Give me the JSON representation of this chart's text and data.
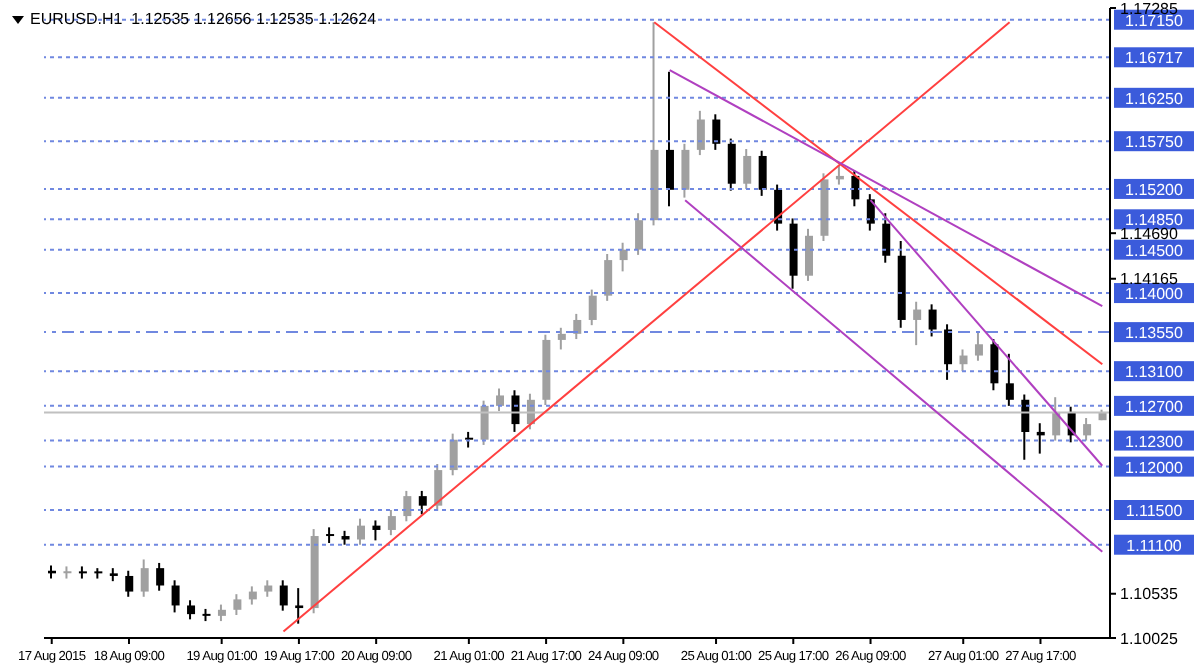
{
  "chart_data": {
    "type": "candlestick",
    "title": "EURUSD.H1  1.12535 1.12656 1.12535 1.12624",
    "categories": [
      "17 Aug 2015",
      null,
      null,
      null,
      null,
      "18 Aug 09:00",
      null,
      null,
      null,
      null,
      null,
      "19 Aug 01:00",
      null,
      null,
      null,
      null,
      "19 Aug 17:00",
      null,
      null,
      null,
      null,
      "20 Aug 09:00",
      null,
      null,
      null,
      null,
      null,
      "21 Aug 01:00",
      null,
      null,
      null,
      null,
      "21 Aug 17:00",
      null,
      null,
      null,
      null,
      "24 Aug 09:00",
      null,
      null,
      null,
      null,
      null,
      "25 Aug 01:00",
      null,
      null,
      null,
      null,
      "25 Aug 17:00",
      null,
      null,
      null,
      null,
      "26 Aug 09:00",
      null,
      null,
      null,
      null,
      null,
      "27 Aug 01:00",
      null,
      null,
      null,
      null,
      "27 Aug 17:00",
      null,
      null,
      null,
      null
    ],
    "ohlc": [
      [
        1.108,
        1.1086,
        1.1071,
        1.1077
      ],
      [
        1.1077,
        1.1085,
        1.1071,
        1.1079
      ],
      [
        1.1079,
        1.1085,
        1.1071,
        1.1077
      ],
      [
        1.1077,
        1.1083,
        1.1071,
        1.1077
      ],
      [
        1.1077,
        1.1083,
        1.1068,
        1.1074
      ],
      [
        1.1074,
        1.108,
        1.105,
        1.1056
      ],
      [
        1.1056,
        1.1093,
        1.105,
        1.1083
      ],
      [
        1.1083,
        1.1089,
        1.1057,
        1.1063
      ],
      [
        1.1063,
        1.1069,
        1.1032,
        1.104
      ],
      [
        1.104,
        1.1046,
        1.1024,
        1.103
      ],
      [
        1.103,
        1.1036,
        1.1022,
        1.1028
      ],
      [
        1.1028,
        1.1041,
        1.1022,
        1.1035
      ],
      [
        1.1035,
        1.1053,
        1.1029,
        1.1047
      ],
      [
        1.1047,
        1.1062,
        1.1041,
        1.1056
      ],
      [
        1.1056,
        1.1069,
        1.105,
        1.1063
      ],
      [
        1.1063,
        1.1069,
        1.1034,
        1.104
      ],
      [
        1.104,
        1.106,
        1.1019,
        1.1037
      ],
      [
        1.1037,
        1.1128,
        1.1031,
        1.112
      ],
      [
        1.112,
        1.113,
        1.1112,
        1.112
      ],
      [
        1.112,
        1.1126,
        1.111,
        1.1116
      ],
      [
        1.1116,
        1.114,
        1.111,
        1.1132
      ],
      [
        1.1132,
        1.1138,
        1.1115,
        1.1127
      ],
      [
        1.1127,
        1.115,
        1.1121,
        1.1143
      ],
      [
        1.1143,
        1.1172,
        1.1137,
        1.1166
      ],
      [
        1.1166,
        1.1172,
        1.1145,
        1.1155
      ],
      [
        1.1155,
        1.1203,
        1.1149,
        1.1196
      ],
      [
        1.1196,
        1.1238,
        1.119,
        1.1231
      ],
      [
        1.1231,
        1.124,
        1.1222,
        1.1231
      ],
      [
        1.1231,
        1.1276,
        1.1225,
        1.127
      ],
      [
        1.127,
        1.129,
        1.1264,
        1.1282
      ],
      [
        1.1282,
        1.1288,
        1.124,
        1.1249
      ],
      [
        1.1249,
        1.1284,
        1.1243,
        1.1277
      ],
      [
        1.1277,
        1.1352,
        1.1271,
        1.1346
      ],
      [
        1.1346,
        1.136,
        1.1335,
        1.1353
      ],
      [
        1.1353,
        1.1376,
        1.1347,
        1.1369
      ],
      [
        1.1369,
        1.1404,
        1.1363,
        1.1397
      ],
      [
        1.1397,
        1.1445,
        1.1391,
        1.1438
      ],
      [
        1.1438,
        1.1458,
        1.1425,
        1.145
      ],
      [
        1.145,
        1.1492,
        1.1444,
        1.1484
      ],
      [
        1.1484,
        1.1712,
        1.1478,
        1.1565
      ],
      [
        1.1565,
        1.1655,
        1.15,
        1.1519
      ],
      [
        1.1519,
        1.1572,
        1.151,
        1.1565
      ],
      [
        1.1565,
        1.161,
        1.1559,
        1.16
      ],
      [
        1.16,
        1.1606,
        1.1565,
        1.1572
      ],
      [
        1.1572,
        1.1578,
        1.1518,
        1.1526
      ],
      [
        1.1526,
        1.1566,
        1.152,
        1.1558
      ],
      [
        1.1558,
        1.1564,
        1.1512,
        1.1519
      ],
      [
        1.1519,
        1.1525,
        1.1472,
        1.148
      ],
      [
        1.148,
        1.1486,
        1.1405,
        1.142
      ],
      [
        1.142,
        1.1474,
        1.1414,
        1.1466
      ],
      [
        1.1466,
        1.1538,
        1.146,
        1.1531
      ],
      [
        1.1531,
        1.1547,
        1.1525,
        1.1535
      ],
      [
        1.1535,
        1.1541,
        1.15,
        1.1508
      ],
      [
        1.1508,
        1.1514,
        1.1472,
        1.148
      ],
      [
        1.148,
        1.1492,
        1.1435,
        1.1443
      ],
      [
        1.1443,
        1.146,
        1.136,
        1.1369
      ],
      [
        1.1369,
        1.139,
        1.134,
        1.1381
      ],
      [
        1.1381,
        1.1387,
        1.135,
        1.1358
      ],
      [
        1.1358,
        1.1364,
        1.13,
        1.1318
      ],
      [
        1.1318,
        1.1335,
        1.131,
        1.1328
      ],
      [
        1.1328,
        1.1355,
        1.1322,
        1.1341
      ],
      [
        1.1341,
        1.1347,
        1.1288,
        1.1296
      ],
      [
        1.1296,
        1.133,
        1.127,
        1.1277
      ],
      [
        1.1277,
        1.1283,
        1.1208,
        1.124
      ],
      [
        1.124,
        1.125,
        1.1215,
        1.1236
      ],
      [
        1.1236,
        1.128,
        1.123,
        1.1263
      ],
      [
        1.1263,
        1.1269,
        1.1228,
        1.1236
      ],
      [
        1.1236,
        1.1256,
        1.123,
        1.1249
      ],
      [
        1.12535,
        1.12656,
        1.12535,
        1.12624
      ]
    ],
    "colors": [
      "#000000",
      "#a0a0a0",
      "#000000",
      "#000000",
      "#000000",
      "#000000",
      "#a0a0a0",
      "#000000",
      "#000000",
      "#000000",
      "#000000",
      "#a0a0a0",
      "#a0a0a0",
      "#a0a0a0",
      "#a0a0a0",
      "#000000",
      "#000000",
      "#a0a0a0",
      "#000000",
      "#000000",
      "#a0a0a0",
      "#000000",
      "#a0a0a0",
      "#a0a0a0",
      "#000000",
      "#a0a0a0",
      "#a0a0a0",
      "#000000",
      "#a0a0a0",
      "#a0a0a0",
      "#000000",
      "#a0a0a0",
      "#a0a0a0",
      "#a0a0a0",
      "#a0a0a0",
      "#a0a0a0",
      "#a0a0a0",
      "#a0a0a0",
      "#a0a0a0",
      "#a0a0a0",
      "#000000",
      "#a0a0a0",
      "#a0a0a0",
      "#000000",
      "#000000",
      "#a0a0a0",
      "#000000",
      "#000000",
      "#000000",
      "#a0a0a0",
      "#a0a0a0",
      "#a0a0a0",
      "#000000",
      "#000000",
      "#000000",
      "#000000",
      "#a0a0a0",
      "#000000",
      "#000000",
      "#a0a0a0",
      "#a0a0a0",
      "#000000",
      "#000000",
      "#000000",
      "#000000",
      "#a0a0a0",
      "#000000",
      "#a0a0a0",
      "#a0a0a0"
    ],
    "series": [
      {
        "type": "line",
        "color": "#ff4040",
        "values": [
          null,
          null,
          null,
          null,
          null,
          null,
          null,
          null,
          null,
          null,
          null,
          null,
          null,
          null,
          null,
          1.101,
          null,
          null,
          null,
          null,
          null,
          null,
          null,
          null,
          null,
          null,
          null,
          null,
          null,
          null,
          null,
          null,
          null,
          null,
          null,
          null,
          null,
          null,
          null,
          null,
          null,
          null,
          null,
          null,
          null,
          null,
          null,
          null,
          null,
          null,
          null,
          null,
          null,
          null,
          null,
          null,
          null,
          null,
          null,
          null,
          null,
          null,
          1.1712,
          null,
          null,
          null,
          null,
          null,
          null
        ]
      },
      {
        "type": "line",
        "color": "#ff4040",
        "values": [
          null,
          null,
          null,
          null,
          null,
          null,
          null,
          null,
          null,
          null,
          null,
          null,
          null,
          null,
          null,
          null,
          null,
          null,
          null,
          null,
          null,
          null,
          null,
          null,
          null,
          null,
          null,
          null,
          null,
          null,
          null,
          null,
          null,
          null,
          null,
          null,
          null,
          null,
          null,
          1.1712,
          null,
          null,
          null,
          null,
          null,
          null,
          null,
          null,
          null,
          null,
          null,
          null,
          null,
          null,
          null,
          null,
          null,
          null,
          null,
          null,
          null,
          null,
          null,
          null,
          null,
          null,
          null,
          null,
          1.1318
        ]
      },
      {
        "type": "line",
        "color": "#b040c0",
        "values": [
          null,
          null,
          null,
          null,
          null,
          null,
          null,
          null,
          null,
          null,
          null,
          null,
          null,
          null,
          null,
          null,
          null,
          null,
          null,
          null,
          null,
          null,
          null,
          null,
          null,
          null,
          null,
          null,
          null,
          null,
          null,
          null,
          null,
          null,
          null,
          null,
          null,
          null,
          null,
          null,
          1.1657,
          null,
          null,
          null,
          null,
          null,
          null,
          null,
          null,
          null,
          null,
          null,
          null,
          null,
          null,
          null,
          null,
          null,
          null,
          null,
          null,
          null,
          null,
          null,
          null,
          null,
          null,
          null,
          1.1385
        ]
      },
      {
        "type": "line",
        "color": "#b040c0",
        "values": [
          null,
          null,
          null,
          null,
          null,
          null,
          null,
          null,
          null,
          null,
          null,
          null,
          null,
          null,
          null,
          null,
          null,
          null,
          null,
          null,
          null,
          null,
          null,
          null,
          null,
          null,
          null,
          null,
          null,
          null,
          null,
          null,
          null,
          null,
          null,
          null,
          null,
          null,
          null,
          null,
          null,
          1.1507,
          null,
          null,
          null,
          null,
          null,
          null,
          null,
          null,
          null,
          null,
          null,
          null,
          null,
          null,
          null,
          null,
          null,
          null,
          null,
          null,
          null,
          null,
          null,
          null,
          null,
          null,
          1.1102
        ]
      },
      {
        "type": "line",
        "color": "#b040c0",
        "values": [
          null,
          null,
          null,
          null,
          null,
          null,
          null,
          null,
          null,
          null,
          null,
          null,
          null,
          null,
          null,
          null,
          null,
          null,
          null,
          null,
          null,
          null,
          null,
          null,
          null,
          null,
          null,
          null,
          null,
          null,
          null,
          null,
          null,
          null,
          null,
          null,
          null,
          null,
          null,
          null,
          null,
          null,
          null,
          null,
          null,
          null,
          null,
          null,
          null,
          null,
          null,
          null,
          null,
          1.1507,
          null,
          null,
          null,
          null,
          null,
          null,
          null,
          null,
          null,
          null,
          null,
          null,
          null,
          null,
          1.1201
        ]
      }
    ],
    "ylim": [
      1.10025,
      1.17285
    ],
    "yticks": [
      1.10025,
      1.10535,
      1.14165,
      {
        "value": 1.1469,
        "label": "1.14690"
      },
      1.17285
    ],
    "ref_lines": [
      {
        "axis": "y",
        "value": 1.1715,
        "label": "1.17150",
        "color": "#7088e0",
        "line_style": "dotted"
      },
      {
        "axis": "y",
        "value": 1.16717,
        "label": "1.16717",
        "color": "#7088e0",
        "line_style": "dotted"
      },
      {
        "axis": "y",
        "value": 1.1625,
        "label": "1.16250",
        "color": "#7088e0",
        "line_style": "dotted"
      },
      {
        "axis": "y",
        "value": 1.1575,
        "label": "1.15750",
        "color": "#7088e0",
        "line_style": "dotted"
      },
      {
        "axis": "y",
        "value": 1.152,
        "label": "1.15200",
        "color": "#7088e0",
        "line_style": "dotted"
      },
      {
        "axis": "y",
        "value": 1.1485,
        "label": "1.14850",
        "color": "#7088e0",
        "line_style": "dotted"
      },
      {
        "axis": "y",
        "value": 1.145,
        "label": "1.14500",
        "color": "#7088e0",
        "line_style": "dotted"
      },
      {
        "axis": "y",
        "value": 1.14,
        "label": "1.14000",
        "color": "#7088e0",
        "line_style": "dotted"
      },
      {
        "axis": "y",
        "value": 1.1355,
        "label": "1.13550",
        "color": "#7088e0",
        "line_style": "dashed"
      },
      {
        "axis": "y",
        "value": 1.131,
        "label": "1.13100",
        "color": "#7088e0",
        "line_style": "dotted"
      },
      {
        "axis": "y",
        "value": 1.127,
        "label": "1.12700",
        "color": "#7088e0",
        "line_style": "dotted"
      },
      {
        "axis": "y",
        "value": 1.12624,
        "color": "#c0c0c0",
        "line_style": "solid"
      },
      {
        "axis": "y",
        "value": 1.123,
        "label": "1.12300",
        "color": "#7088e0",
        "line_style": "dotted"
      },
      {
        "axis": "y",
        "value": 1.12,
        "label": "1.12000",
        "color": "#7088e0",
        "line_style": "dotted"
      },
      {
        "axis": "y",
        "value": 1.115,
        "label": "1.11500",
        "color": "#7088e0",
        "line_style": "dotted"
      },
      {
        "axis": "y",
        "value": 1.111,
        "label": "1.11100",
        "color": "#7088e0",
        "line_style": "dotted"
      }
    ]
  }
}
